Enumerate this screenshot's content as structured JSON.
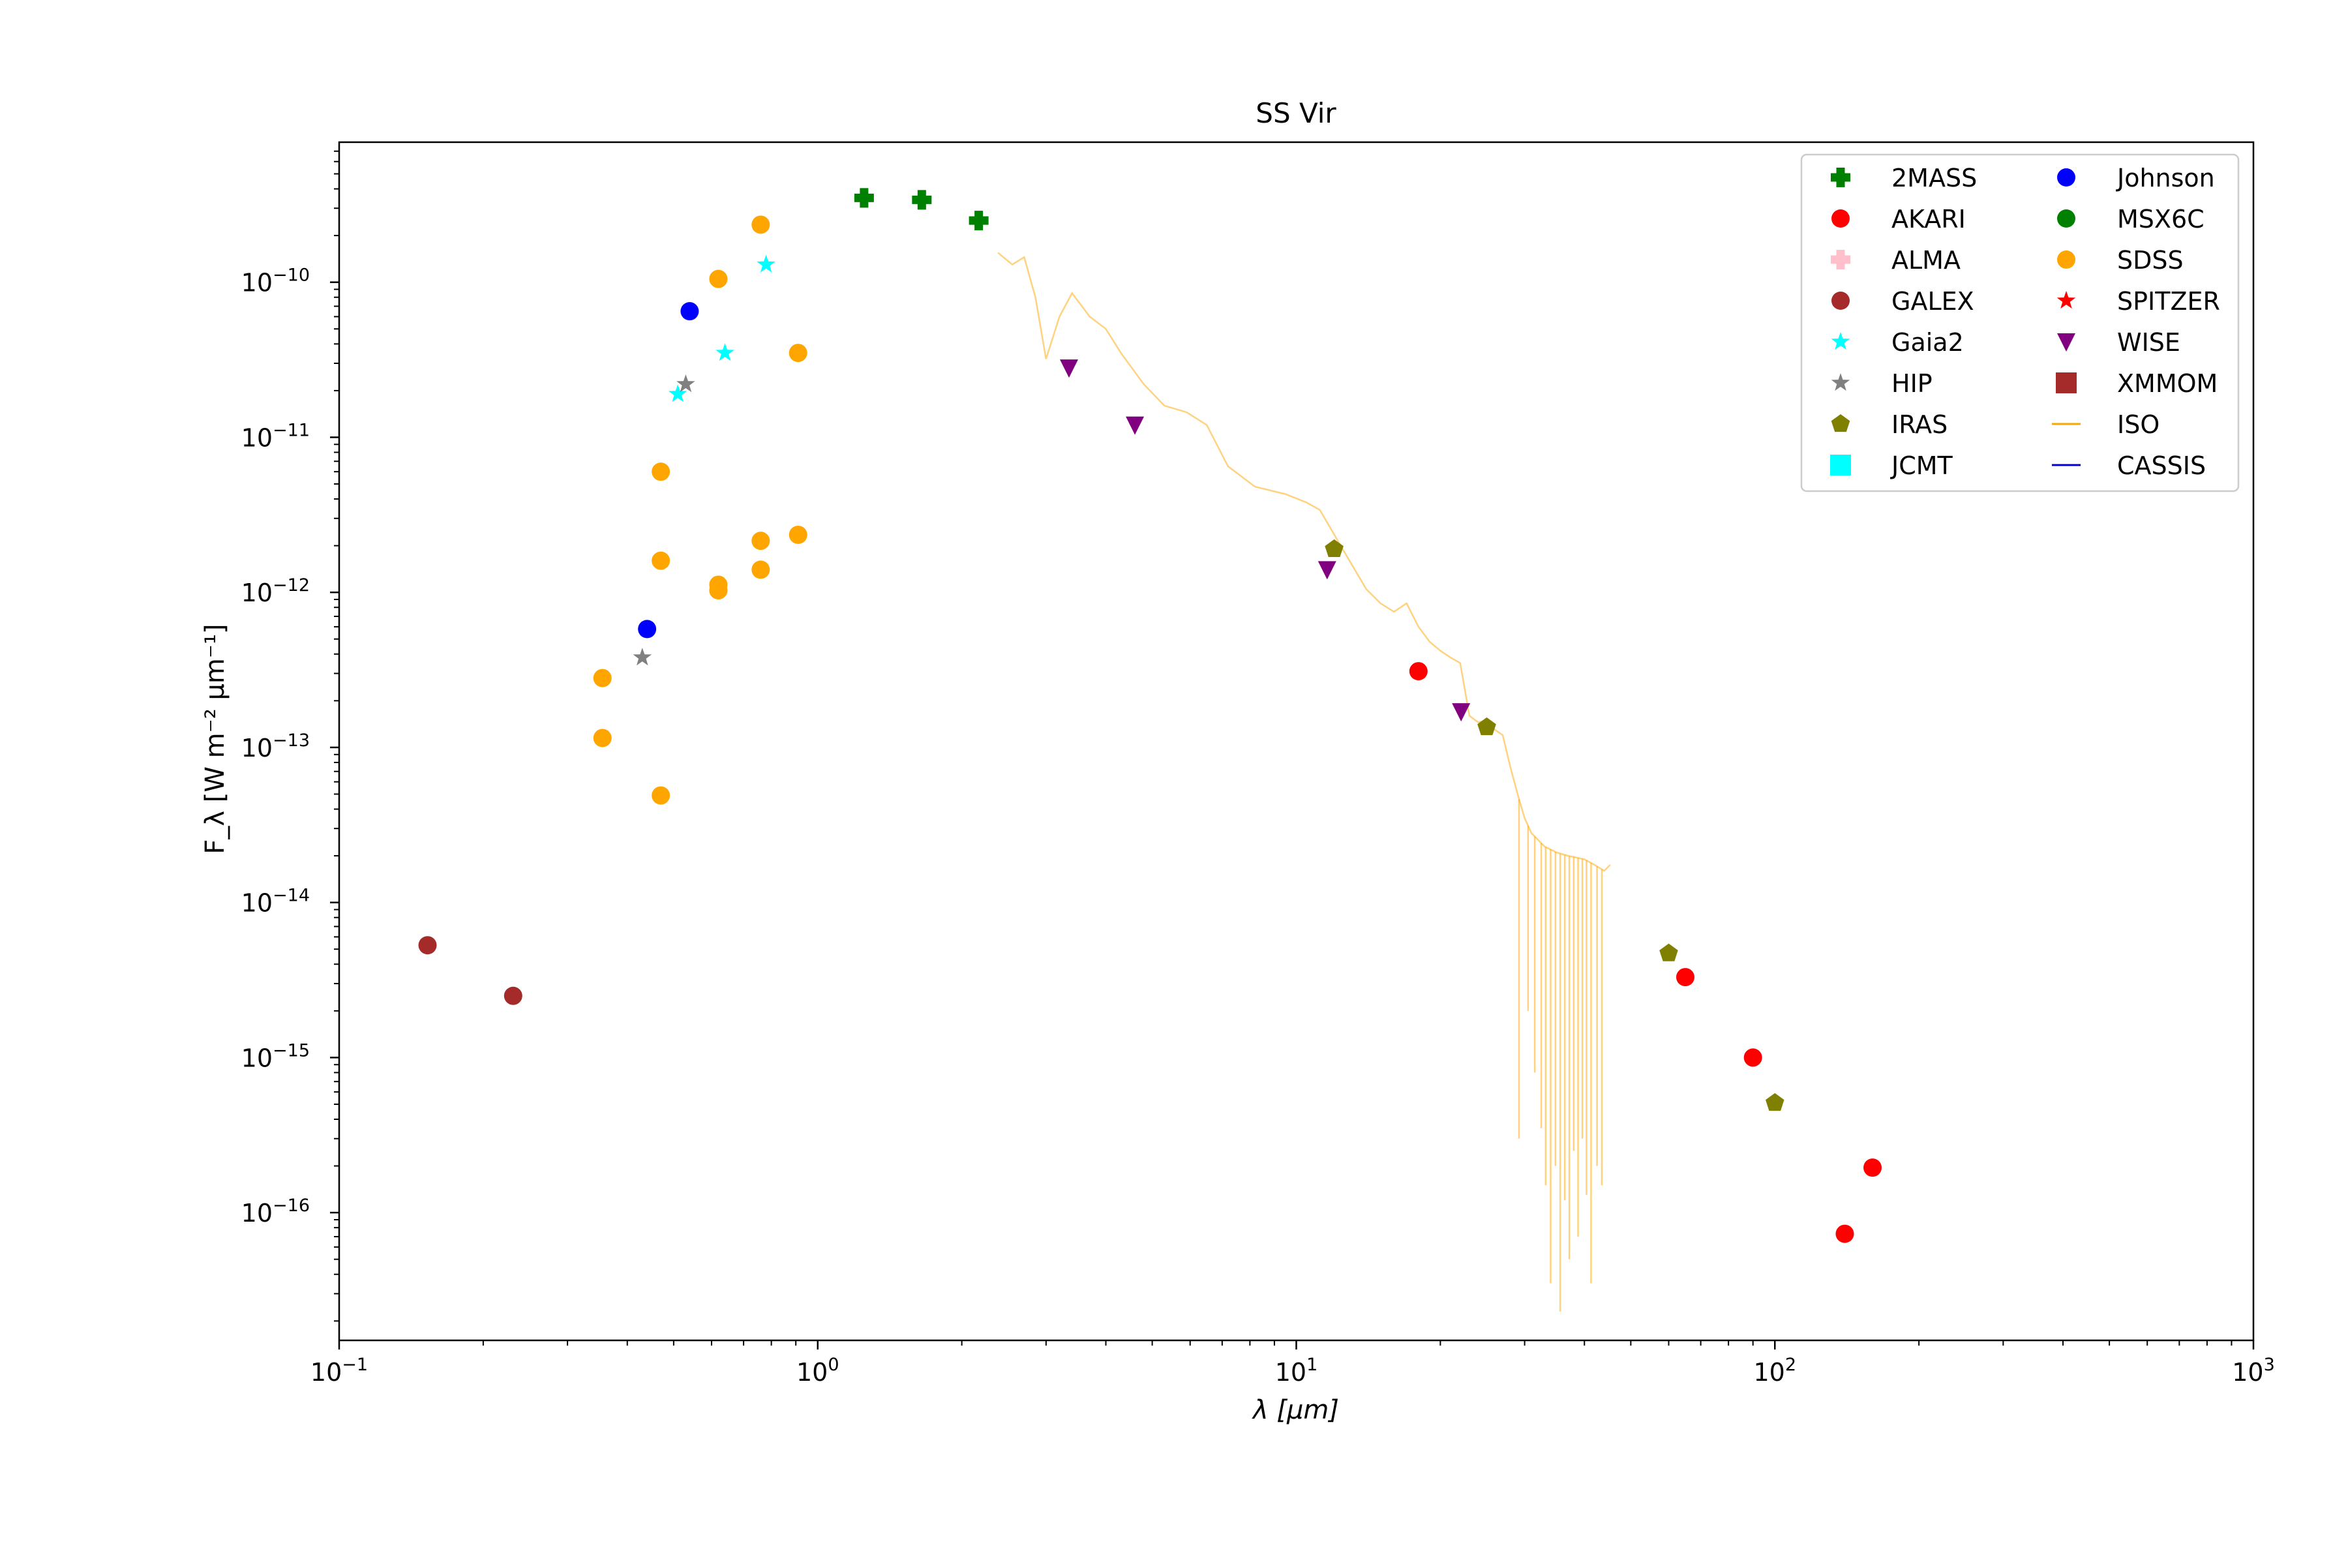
{
  "chart_data": {
    "type": "scatter",
    "title": "SS Vir",
    "xlabel": "λ [μm]",
    "ylabel": "F_λ [W m⁻² μm⁻¹]",
    "x_scale": "log",
    "y_scale": "log",
    "xlim": [
      0.1,
      1000
    ],
    "ylim": [
      1.5e-17,
      8e-10
    ],
    "grid": false,
    "legend_position": "top-right",
    "x_ticks": [
      {
        "mant": "10",
        "exp": "−1",
        "value": 0.1
      },
      {
        "mant": "10",
        "exp": "0",
        "value": 1
      },
      {
        "mant": "10",
        "exp": "1",
        "value": 10
      },
      {
        "mant": "10",
        "exp": "2",
        "value": 100
      },
      {
        "mant": "10",
        "exp": "3",
        "value": 1000
      }
    ],
    "y_ticks": [
      {
        "mant": "10",
        "exp": "−16",
        "value": 1e-16
      },
      {
        "mant": "10",
        "exp": "−15",
        "value": 1e-15
      },
      {
        "mant": "10",
        "exp": "−14",
        "value": 1e-14
      },
      {
        "mant": "10",
        "exp": "−13",
        "value": 1e-13
      },
      {
        "mant": "10",
        "exp": "−12",
        "value": 1e-12
      },
      {
        "mant": "10",
        "exp": "−11",
        "value": 1e-11
      },
      {
        "mant": "10",
        "exp": "−10",
        "value": 1e-10
      }
    ],
    "series": [
      {
        "name": "2MASS",
        "marker": "plus",
        "color": "#008000",
        "points": [
          [
            1.25,
            3.5e-10
          ],
          [
            1.65,
            3.4e-10
          ],
          [
            2.17,
            2.5e-10
          ]
        ]
      },
      {
        "name": "AKARI",
        "marker": "circle",
        "color": "#ff0000",
        "points": [
          [
            18,
            3.1e-13
          ],
          [
            65,
            3.3e-15
          ],
          [
            90,
            1e-15
          ],
          [
            140,
            7.3e-17
          ],
          [
            160,
            1.95e-16
          ]
        ]
      },
      {
        "name": "ALMA",
        "marker": "plus",
        "color": "#ffc0cb",
        "points": []
      },
      {
        "name": "GALEX",
        "marker": "circle",
        "color": "#a52a2a",
        "points": [
          [
            0.153,
            5.3e-15
          ],
          [
            0.231,
            2.5e-15
          ]
        ]
      },
      {
        "name": "Gaia2",
        "marker": "star",
        "color": "#00ffff",
        "points": [
          [
            0.51,
            1.9e-11
          ],
          [
            0.64,
            3.5e-11
          ],
          [
            0.78,
            1.3e-10
          ]
        ]
      },
      {
        "name": "HIP",
        "marker": "star",
        "color": "#808080",
        "points": [
          [
            0.43,
            3.8e-13
          ],
          [
            0.53,
            2.2e-11
          ]
        ]
      },
      {
        "name": "IRAS",
        "marker": "pentagon",
        "color": "#808000",
        "points": [
          [
            12,
            1.9e-12
          ],
          [
            25,
            1.35e-13
          ],
          [
            60,
            4.7e-15
          ],
          [
            100,
            5.1e-16
          ]
        ]
      },
      {
        "name": "JCMT",
        "marker": "square",
        "color": "#00ffff",
        "points": []
      },
      {
        "name": "Johnson",
        "marker": "circle",
        "color": "#0000ff",
        "points": [
          [
            0.44,
            5.8e-13
          ],
          [
            0.54,
            6.5e-11
          ]
        ]
      },
      {
        "name": "MSX6C",
        "marker": "circle",
        "color": "#008000",
        "points": []
      },
      {
        "name": "SDSS",
        "marker": "circle",
        "color": "#ffa500",
        "points": [
          [
            0.355,
            2.8e-13
          ],
          [
            0.355,
            1.15e-13
          ],
          [
            0.47,
            6e-12
          ],
          [
            0.47,
            1.6e-12
          ],
          [
            0.47,
            4.9e-14
          ],
          [
            0.62,
            1.05e-10
          ],
          [
            0.62,
            1.12e-12
          ],
          [
            0.62,
            1.03e-12
          ],
          [
            0.76,
            2.35e-10
          ],
          [
            0.76,
            2.15e-12
          ],
          [
            0.76,
            1.4e-12
          ],
          [
            0.91,
            3.5e-11
          ],
          [
            0.91,
            2.35e-12
          ]
        ]
      },
      {
        "name": "SPITZER",
        "marker": "star",
        "color": "#ff0000",
        "points": []
      },
      {
        "name": "WISE",
        "marker": "triangle-down",
        "color": "#800080",
        "points": [
          [
            3.35,
            2.8e-11
          ],
          [
            4.6,
            1.2e-11
          ],
          [
            11.6,
            1.4e-12
          ],
          [
            22.1,
            1.7e-13
          ]
        ]
      },
      {
        "name": "XMMOM",
        "marker": "square",
        "color": "#a52a2a",
        "points": []
      },
      {
        "name": "ISO",
        "marker": "line",
        "color": "#ffa500",
        "points": [
          [
            2.38,
            1.55e-10
          ],
          [
            2.55,
            1.3e-10
          ],
          [
            2.7,
            1.45e-10
          ],
          [
            2.85,
            8e-11
          ],
          [
            3.0,
            3.2e-11
          ],
          [
            3.2,
            6e-11
          ],
          [
            3.4,
            8.5e-11
          ],
          [
            3.7,
            6e-11
          ],
          [
            4.0,
            5e-11
          ],
          [
            4.3,
            3.5e-11
          ],
          [
            4.8,
            2.2e-11
          ],
          [
            5.3,
            1.6e-11
          ],
          [
            5.9,
            1.45e-11
          ],
          [
            6.5,
            1.2e-11
          ],
          [
            7.2,
            6.5e-12
          ],
          [
            8.2,
            4.8e-12
          ],
          [
            9.5,
            4.3e-12
          ],
          [
            10.5,
            3.8e-12
          ],
          [
            11.2,
            3.4e-12
          ],
          [
            12.5,
            1.9e-12
          ],
          [
            14,
            1.05e-12
          ],
          [
            15,
            8.5e-13
          ],
          [
            16,
            7.5e-13
          ],
          [
            17,
            8.5e-13
          ],
          [
            18,
            6e-13
          ],
          [
            19,
            4.8e-13
          ],
          [
            20,
            4.2e-13
          ],
          [
            21,
            3.8e-13
          ],
          [
            22,
            3.5e-13
          ],
          [
            23,
            1.6e-13
          ],
          [
            24,
            1.45e-13
          ],
          [
            25,
            1.5e-13
          ],
          [
            26,
            1.3e-13
          ],
          [
            27,
            1.2e-13
          ],
          [
            28,
            7.5e-14
          ],
          [
            29,
            5e-14
          ],
          [
            30,
            3.5e-14
          ],
          [
            31,
            2.8e-14
          ],
          [
            33,
            2.3e-14
          ],
          [
            35,
            2.1e-14
          ],
          [
            37,
            2e-14
          ],
          [
            40,
            1.9e-14
          ],
          [
            42,
            1.75e-14
          ],
          [
            44,
            1.6e-14
          ],
          [
            45.3,
            1.75e-14
          ]
        ]
      },
      {
        "name": "CASSIS",
        "marker": "line",
        "color": "#0000cd",
        "points": []
      }
    ],
    "iso_dips": [
      [
        29.2,
        3e-16
      ],
      [
        30.5,
        2e-15
      ],
      [
        31.5,
        8e-16
      ],
      [
        32.5,
        3.5e-16
      ],
      [
        33.2,
        1.5e-16
      ],
      [
        34.0,
        3.5e-17
      ],
      [
        34.8,
        2e-16
      ],
      [
        35.6,
        2.3e-17
      ],
      [
        36.4,
        1.2e-16
      ],
      [
        37.2,
        5e-17
      ],
      [
        38.0,
        2.5e-16
      ],
      [
        38.8,
        7e-17
      ],
      [
        39.6,
        3e-16
      ],
      [
        40.4,
        1.3e-16
      ],
      [
        41.3,
        3.5e-17
      ],
      [
        42.5,
        2e-16
      ],
      [
        43.5,
        1.5e-16
      ]
    ]
  }
}
